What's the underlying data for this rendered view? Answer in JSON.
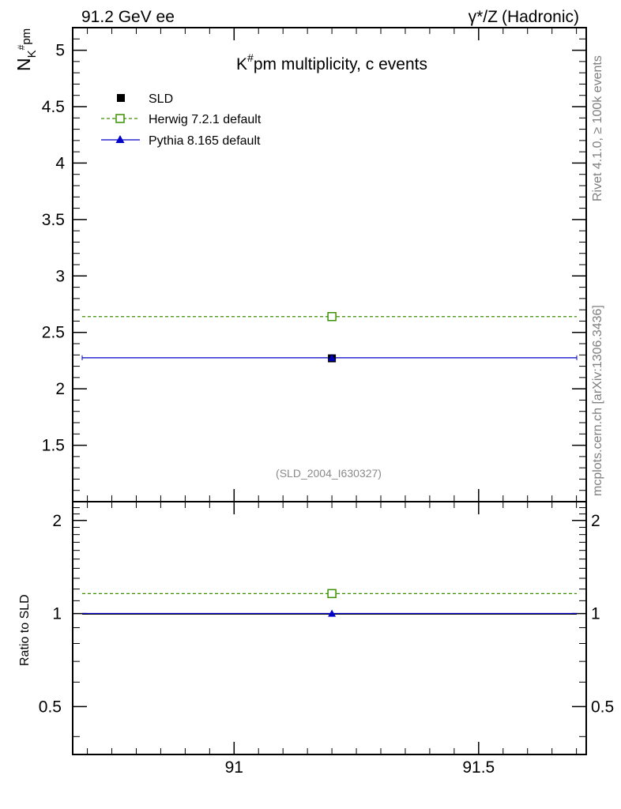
{
  "header": {
    "left_label": "91.2 GeV ee",
    "right_label_prefix": "γ*/Z",
    "right_label_suffix": "(Hadronic)"
  },
  "side_text": {
    "rivet": "Rivet 4.1.0, ≥ 100k events",
    "mcplots": "mcplots.cern.ch [arXiv:1306.3436]"
  },
  "colors": {
    "herwig": "#3a8f00",
    "pythia": "#0000c8",
    "data": "#000000",
    "watermark": "#8a8a8a"
  },
  "chart_data": [
    {
      "type": "scatter",
      "title_main": "K",
      "title_sup": "#",
      "title_rest": "pm multiplicity, c events",
      "ylabel_main": "N",
      "ylabel_sub": "K",
      "ylabel_sup": "#",
      "ylabel_sub2": "pm",
      "watermark": "(SLD_2004_I630327)",
      "xlim": [
        90.67,
        91.72
      ],
      "ylim": [
        1.0,
        5.2
      ],
      "yticks": [
        1.5,
        2,
        2.5,
        3,
        3.5,
        4,
        4.5,
        5
      ],
      "ytick_labels": [
        "1.5",
        "2",
        "2.5",
        "3",
        "3.5",
        "4",
        "4.5",
        "5"
      ],
      "series": [
        {
          "name": "SLD",
          "x": [
            91.2
          ],
          "y": [
            2.27
          ],
          "yerr": [
            0.02
          ],
          "marker": "square-filled"
        },
        {
          "name": "Herwig 7.2.1 default",
          "x": [
            91.2
          ],
          "y": [
            2.64
          ],
          "xrange": [
            90.67,
            91.72
          ],
          "marker": "square-open",
          "line": "dashed"
        },
        {
          "name": "Pythia 8.165 default",
          "x": [
            91.2
          ],
          "y": [
            2.275
          ],
          "xrange": [
            90.67,
            91.72
          ],
          "marker": "triangle",
          "line": "solid"
        }
      ]
    },
    {
      "type": "scatter",
      "ylabel": "Ratio to SLD",
      "xlim": [
        90.67,
        91.72
      ],
      "ylim": [
        0.35,
        2.3
      ],
      "yticks": [
        0.5,
        1,
        2
      ],
      "ytick_labels": [
        "0.5",
        "1",
        "2"
      ],
      "xticks": [
        91,
        91.5
      ],
      "xtick_labels": [
        "91",
        "91.5"
      ],
      "series": [
        {
          "name": "Herwig 7.2.1 default",
          "x": [
            91.2
          ],
          "y": [
            1.16
          ],
          "marker": "square-open",
          "line": "dashed"
        },
        {
          "name": "Pythia 8.165 default",
          "x": [
            91.2
          ],
          "y": [
            1.0
          ],
          "marker": "triangle",
          "line": "solid"
        }
      ]
    }
  ]
}
